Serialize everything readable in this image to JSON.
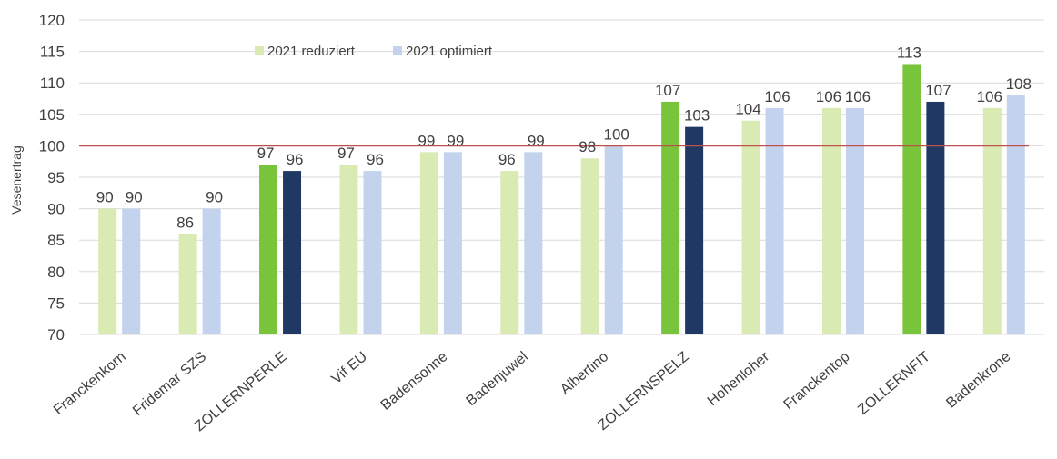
{
  "chart_data": {
    "type": "bar",
    "ylabel": "Vesenertrag",
    "ylim": [
      70,
      120
    ],
    "yticks": [
      70,
      75,
      80,
      85,
      90,
      95,
      100,
      105,
      110,
      115,
      120
    ],
    "grid": true,
    "legend_position": "top-left",
    "reference_line": {
      "value": 100,
      "color": "#c0504d"
    },
    "categories": [
      "Franckenkorn",
      "Fridemar SZS",
      "ZOLLERNPERLE",
      "Vif EU",
      "Badensonne",
      "Badenjuwel",
      "Albertino",
      "ZOLLERNSPELZ",
      "Hohenloher",
      "Franckentop",
      "ZOLLERNFIT",
      "Badenkrone"
    ],
    "series": [
      {
        "name": "2021 reduziert",
        "values": [
          90,
          86,
          97,
          97,
          99,
          96,
          98,
          107,
          104,
          106,
          113,
          106
        ],
        "color": "#d9eab3",
        "highlight_color": "#78c53b"
      },
      {
        "name": "2021 optimiert",
        "values": [
          90,
          90,
          96,
          96,
          99,
          99,
          100,
          103,
          106,
          106,
          107,
          108
        ],
        "color": "#c3d3ee",
        "highlight_color": "#1f3864"
      }
    ],
    "highlighted_categories": [
      "ZOLLERNPERLE",
      "ZOLLERNSPELZ",
      "ZOLLERNFIT"
    ],
    "legend_colors": [
      "#d9eab3",
      "#c3d3ee"
    ]
  }
}
